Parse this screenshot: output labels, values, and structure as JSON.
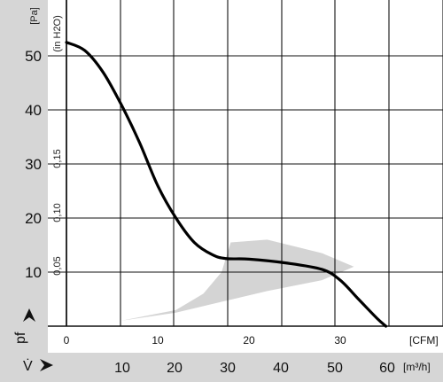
{
  "chart_data": {
    "type": "line",
    "title": "",
    "axes": {
      "pressure_pa": {
        "unit_label": "[Pa]",
        "symbol": "pf",
        "ticks": [
          "10",
          "20",
          "30",
          "40",
          "50"
        ],
        "range": [
          0,
          55
        ]
      },
      "pressure_inh2o": {
        "unit_label": "(in H2O)",
        "ticks": [
          "0,05",
          "0,10",
          "0,15"
        ]
      },
      "flow_cfm": {
        "unit_label": "[CFM]",
        "ticks": [
          "0",
          "10",
          "20",
          "30"
        ],
        "range": [
          0,
          40
        ]
      },
      "flow_m3h": {
        "unit_label": "[m³/h]",
        "symbol": "V̇",
        "ticks": [
          "10",
          "20",
          "30",
          "40",
          "50",
          "60"
        ]
      }
    },
    "series": [
      {
        "x": [
          0,
          2,
          4,
          6,
          8,
          10,
          12,
          14,
          16,
          17.5,
          20,
          24,
          28,
          30,
          32,
          34,
          35
        ],
        "y": [
          52.5,
          51,
          47,
          41,
          34,
          26,
          20,
          15.5,
          13.2,
          12.5,
          12.4,
          11.7,
          10.5,
          8.5,
          5,
          1.5,
          0
        ]
      }
    ],
    "operating_band": {
      "color": "#d4d4d4",
      "upper": {
        "x": [
          0,
          6,
          12,
          15,
          17,
          18,
          22,
          28,
          31.5
        ],
        "y": [
          0,
          1,
          3,
          6,
          10,
          15.5,
          16,
          13.5,
          11
        ]
      },
      "lower": {
        "x": [
          31.5,
          28,
          22,
          17,
          12,
          6,
          0
        ],
        "y": [
          11,
          8.5,
          6.5,
          4.5,
          2.5,
          1,
          0
        ]
      }
    },
    "grid": true
  }
}
